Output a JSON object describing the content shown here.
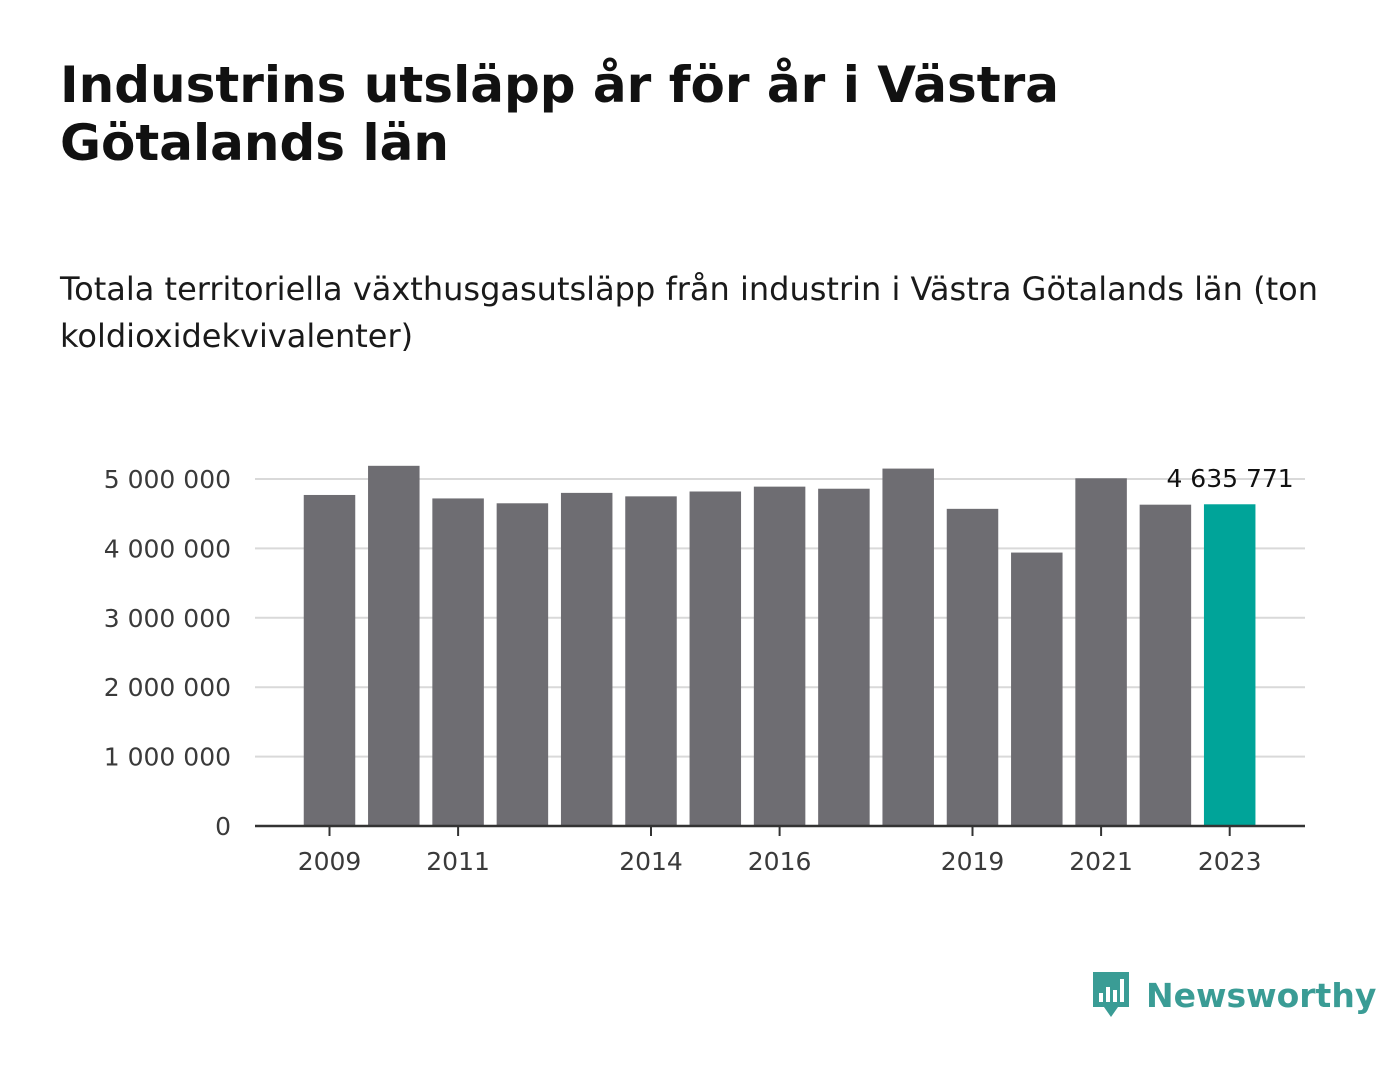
{
  "title": "Industrins utsläpp år för år i Västra Götalands län",
  "subtitle": "Totala territoriella växthusgasutsläpp från industrin i Västra Götalands län (ton koldioxidekvivalenter)",
  "brand": {
    "name": "Newsworthy",
    "icon": "newsworthy-logo-icon",
    "color": "#3a9c95"
  },
  "colors": {
    "bar": "#6e6d72",
    "highlight": "#00a499",
    "grid": "#d9d9d9",
    "axis": "#333333"
  },
  "chart_data": {
    "type": "bar",
    "categories": [
      "2009",
      "2010",
      "2011",
      "2012",
      "2013",
      "2014",
      "2015",
      "2016",
      "2017",
      "2018",
      "2019",
      "2020",
      "2021",
      "2022",
      "2023"
    ],
    "values": [
      4770000,
      5190000,
      4720000,
      4650000,
      4800000,
      4750000,
      4820000,
      4890000,
      4860000,
      5150000,
      4570000,
      3940000,
      5010000,
      4630000,
      4635771
    ],
    "highlight_index": 14,
    "data_labels": [
      {
        "category": "2023",
        "text": "4 635 771"
      }
    ],
    "x_tick_labels": [
      "2009",
      "2011",
      "2014",
      "2016",
      "2019",
      "2021",
      "2023"
    ],
    "y_ticks": [
      0,
      1000000,
      2000000,
      3000000,
      4000000,
      5000000
    ],
    "y_tick_labels": [
      "0",
      "1 000 000",
      "2 000 000",
      "3 000 000",
      "4 000 000",
      "5 000 000"
    ],
    "ylim": [
      0,
      5200000
    ],
    "xlabel": "",
    "ylabel": "",
    "grid": true
  }
}
